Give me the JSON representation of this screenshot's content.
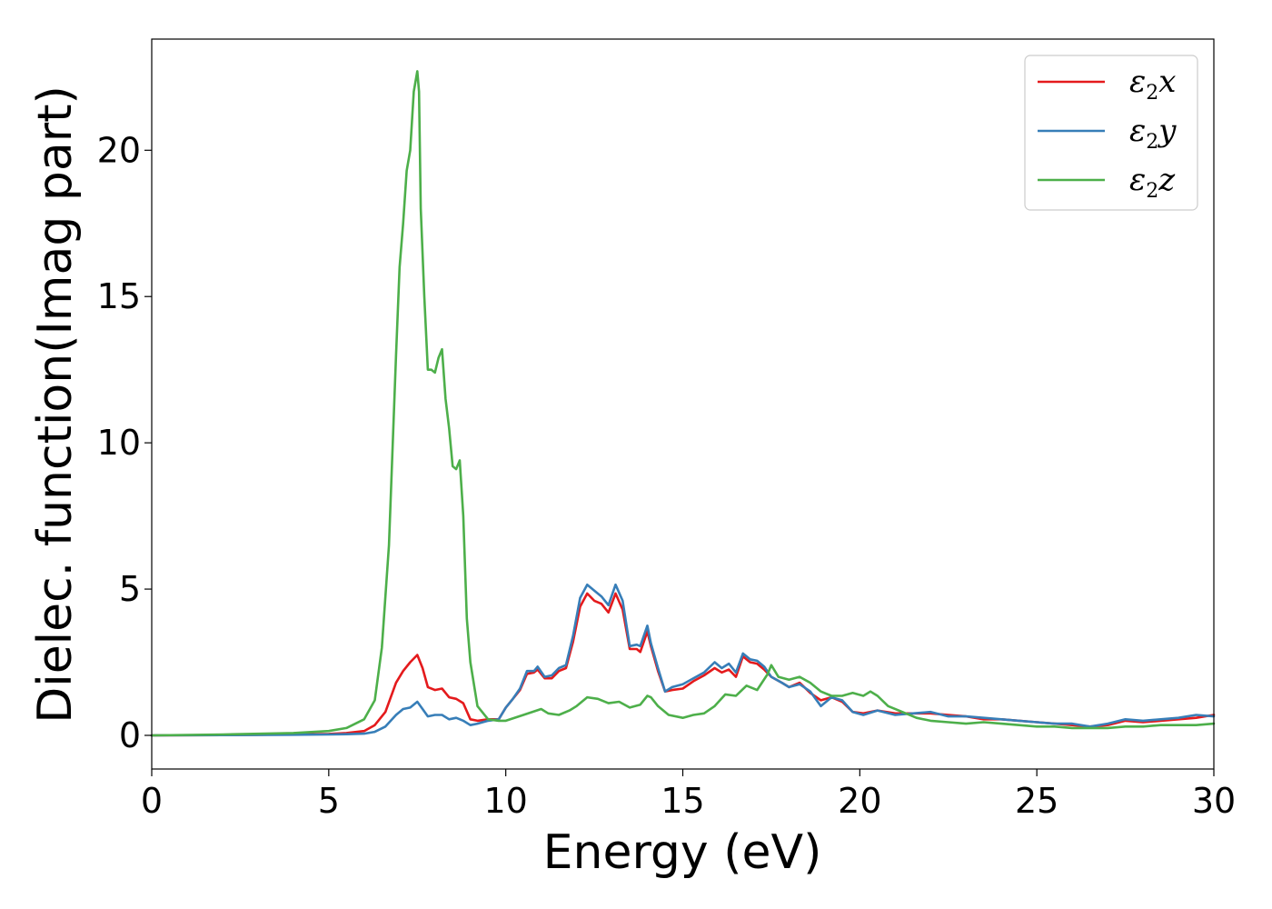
{
  "chart_data": {
    "type": "line",
    "title": "",
    "xlabel": "Energy (eV)",
    "ylabel": "Dielec. function(Imag part)",
    "xlim": [
      0,
      30
    ],
    "ylim": [
      -1.15,
      23.8
    ],
    "xticks": [
      0,
      5,
      10,
      15,
      20,
      25,
      30
    ],
    "yticks": [
      0,
      5,
      10,
      15,
      20
    ],
    "grid": false,
    "legend_position": "top-right",
    "series": [
      {
        "name": "ε2x",
        "color": "#e41a1c",
        "x": [
          0,
          2,
          4,
          5,
          5.5,
          6,
          6.3,
          6.6,
          6.9,
          7.1,
          7.3,
          7.5,
          7.65,
          7.8,
          8.0,
          8.2,
          8.4,
          8.6,
          8.8,
          9.0,
          9.2,
          9.5,
          9.8,
          10.0,
          10.2,
          10.4,
          10.6,
          10.8,
          10.9,
          11.1,
          11.3,
          11.5,
          11.7,
          11.9,
          12.1,
          12.3,
          12.5,
          12.7,
          12.9,
          13.1,
          13.3,
          13.5,
          13.7,
          13.8,
          14.0,
          14.1,
          14.3,
          14.5,
          14.7,
          15.0,
          15.3,
          15.6,
          15.9,
          16.1,
          16.3,
          16.5,
          16.7,
          16.9,
          17.1,
          17.3,
          17.5,
          17.8,
          18.0,
          18.3,
          18.6,
          18.9,
          19.2,
          19.5,
          19.8,
          20.1,
          20.5,
          21.0,
          21.5,
          22.0,
          22.5,
          23.0,
          23.5,
          24.0,
          24.5,
          25.0,
          25.5,
          26.0,
          26.5,
          27.0,
          27.5,
          28.0,
          28.5,
          29.0,
          29.5,
          30.0
        ],
        "values": [
          0,
          0.01,
          0.03,
          0.05,
          0.08,
          0.15,
          0.35,
          0.8,
          1.8,
          2.2,
          2.5,
          2.75,
          2.3,
          1.65,
          1.55,
          1.6,
          1.3,
          1.25,
          1.1,
          0.55,
          0.5,
          0.55,
          0.55,
          0.95,
          1.25,
          1.55,
          2.1,
          2.15,
          2.25,
          1.95,
          1.95,
          2.2,
          2.3,
          3.2,
          4.4,
          4.85,
          4.6,
          4.5,
          4.2,
          4.85,
          4.3,
          2.95,
          2.95,
          2.85,
          3.55,
          3.05,
          2.2,
          1.5,
          1.55,
          1.6,
          1.85,
          2.05,
          2.3,
          2.15,
          2.25,
          2.0,
          2.7,
          2.5,
          2.45,
          2.25,
          2.0,
          1.8,
          1.65,
          1.8,
          1.45,
          1.2,
          1.3,
          1.15,
          0.8,
          0.75,
          0.85,
          0.75,
          0.75,
          0.75,
          0.7,
          0.65,
          0.55,
          0.55,
          0.5,
          0.45,
          0.4,
          0.35,
          0.3,
          0.35,
          0.5,
          0.45,
          0.5,
          0.55,
          0.6,
          0.7
        ]
      },
      {
        "name": "ε2y",
        "color": "#377eb8",
        "x": [
          0,
          2,
          4,
          5,
          5.5,
          6,
          6.3,
          6.6,
          6.9,
          7.1,
          7.3,
          7.5,
          7.65,
          7.8,
          8.0,
          8.2,
          8.4,
          8.6,
          8.8,
          9.0,
          9.2,
          9.5,
          9.8,
          10.0,
          10.2,
          10.4,
          10.6,
          10.8,
          10.9,
          11.1,
          11.3,
          11.5,
          11.7,
          11.9,
          12.1,
          12.3,
          12.5,
          12.7,
          12.9,
          13.1,
          13.3,
          13.5,
          13.7,
          13.8,
          14.0,
          14.1,
          14.3,
          14.5,
          14.7,
          15.0,
          15.3,
          15.6,
          15.9,
          16.1,
          16.3,
          16.5,
          16.7,
          16.9,
          17.1,
          17.3,
          17.5,
          17.8,
          18.0,
          18.3,
          18.6,
          18.9,
          19.2,
          19.5,
          19.8,
          20.1,
          20.5,
          21.0,
          21.5,
          22.0,
          22.5,
          23.0,
          23.5,
          24.0,
          24.5,
          25.0,
          25.5,
          26.0,
          26.5,
          27.0,
          27.5,
          28.0,
          28.5,
          29.0,
          29.5,
          30.0
        ],
        "values": [
          0,
          0.01,
          0.02,
          0.03,
          0.04,
          0.06,
          0.12,
          0.3,
          0.7,
          0.9,
          0.95,
          1.15,
          0.9,
          0.65,
          0.7,
          0.7,
          0.55,
          0.6,
          0.5,
          0.35,
          0.4,
          0.5,
          0.55,
          0.95,
          1.25,
          1.6,
          2.2,
          2.2,
          2.35,
          2.0,
          2.05,
          2.3,
          2.4,
          3.4,
          4.7,
          5.15,
          4.95,
          4.75,
          4.45,
          5.15,
          4.6,
          3.05,
          3.1,
          3.05,
          3.75,
          3.15,
          2.3,
          1.5,
          1.65,
          1.75,
          1.95,
          2.15,
          2.5,
          2.3,
          2.45,
          2.15,
          2.8,
          2.6,
          2.55,
          2.35,
          2.0,
          1.8,
          1.65,
          1.75,
          1.5,
          1.0,
          1.3,
          1.2,
          0.8,
          0.7,
          0.85,
          0.7,
          0.75,
          0.8,
          0.65,
          0.65,
          0.6,
          0.55,
          0.5,
          0.45,
          0.4,
          0.4,
          0.3,
          0.4,
          0.55,
          0.5,
          0.55,
          0.6,
          0.7,
          0.65
        ]
      },
      {
        "name": "ε2z",
        "color": "#4daf4a",
        "x": [
          0,
          2,
          4,
          5,
          5.5,
          6,
          6.3,
          6.5,
          6.7,
          6.9,
          7.0,
          7.1,
          7.2,
          7.3,
          7.4,
          7.5,
          7.55,
          7.6,
          7.7,
          7.8,
          7.9,
          8.0,
          8.1,
          8.2,
          8.3,
          8.4,
          8.5,
          8.6,
          8.7,
          8.8,
          8.9,
          9.0,
          9.2,
          9.5,
          9.8,
          10.0,
          10.5,
          11.0,
          11.2,
          11.5,
          11.8,
          12.0,
          12.3,
          12.6,
          12.9,
          13.2,
          13.5,
          13.8,
          14.0,
          14.1,
          14.3,
          14.6,
          15.0,
          15.3,
          15.6,
          15.9,
          16.2,
          16.5,
          16.8,
          17.1,
          17.4,
          17.5,
          17.7,
          18.0,
          18.3,
          18.6,
          18.9,
          19.2,
          19.5,
          19.8,
          20.1,
          20.3,
          20.5,
          20.8,
          21.2,
          21.6,
          22.0,
          22.5,
          23.0,
          23.5,
          24.0,
          24.5,
          25.0,
          25.5,
          26.0,
          26.5,
          27.0,
          27.5,
          28.0,
          28.5,
          29.0,
          29.5,
          30.0
        ],
        "values": [
          0,
          0.03,
          0.08,
          0.15,
          0.25,
          0.55,
          1.2,
          3.0,
          6.5,
          13.0,
          16.0,
          17.5,
          19.3,
          20.0,
          22.0,
          22.7,
          22.0,
          18.0,
          15.0,
          12.5,
          12.5,
          12.4,
          12.9,
          13.2,
          11.5,
          10.5,
          9.2,
          9.1,
          9.4,
          7.5,
          4.0,
          2.5,
          1.0,
          0.55,
          0.5,
          0.5,
          0.7,
          0.9,
          0.75,
          0.7,
          0.85,
          1.0,
          1.3,
          1.25,
          1.1,
          1.15,
          0.95,
          1.05,
          1.35,
          1.3,
          1.0,
          0.7,
          0.6,
          0.7,
          0.75,
          1.0,
          1.4,
          1.35,
          1.7,
          1.55,
          2.1,
          2.4,
          2.0,
          1.9,
          2.0,
          1.8,
          1.5,
          1.35,
          1.35,
          1.45,
          1.35,
          1.5,
          1.35,
          1.0,
          0.8,
          0.6,
          0.5,
          0.45,
          0.4,
          0.45,
          0.4,
          0.35,
          0.3,
          0.3,
          0.25,
          0.25,
          0.25,
          0.3,
          0.3,
          0.35,
          0.35,
          0.35,
          0.4
        ]
      }
    ]
  }
}
